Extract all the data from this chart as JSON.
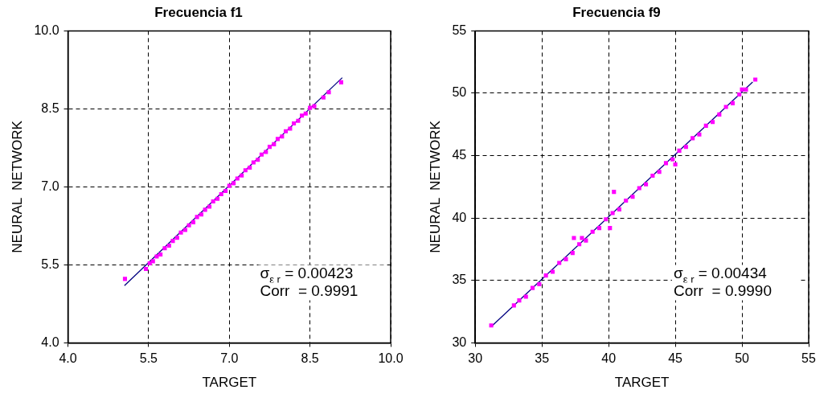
{
  "chart_data": [
    {
      "type": "scatter",
      "title": "Frecuencia f1",
      "xlabel": "TARGET",
      "ylabel": "NEURAL  NETWORK",
      "xlim": [
        4,
        10
      ],
      "xticks": [
        {
          "value": 4,
          "label": "4.0"
        },
        5.5,
        {
          "value": 7,
          "label": "7.0"
        },
        8.5,
        {
          "value": 10,
          "label": "10.0"
        }
      ],
      "ylim": [
        4,
        10
      ],
      "yticks": [
        {
          "value": 4,
          "label": "4.0"
        },
        5.5,
        {
          "value": 7,
          "label": "7.0"
        },
        8.5,
        {
          "value": 10,
          "label": "10.0"
        }
      ],
      "grid": true,
      "marker": "square",
      "annotations": [
        "σ$_{ε r}$ = 0.00423",
        "Corr  = 0.9991"
      ],
      "series": [
        {
          "type": "scatter",
          "color": "#ff00ff",
          "x": [
            5.06,
            5.45,
            5.52,
            5.58,
            5.65,
            5.72,
            5.8,
            5.88,
            5.95,
            6.03,
            6.1,
            6.18,
            6.25,
            6.33,
            6.4,
            6.48,
            6.55,
            6.63,
            6.7,
            6.78,
            6.85,
            6.93,
            7.0,
            7.08,
            7.15,
            7.23,
            7.3,
            7.38,
            7.45,
            7.53,
            7.6,
            7.68,
            7.75,
            7.83,
            7.9,
            7.98,
            8.05,
            8.13,
            8.2,
            8.28,
            8.35,
            8.42,
            8.5,
            8.58,
            8.75,
            8.85,
            9.08
          ],
          "values": [
            5.23,
            5.42,
            5.53,
            5.57,
            5.66,
            5.7,
            5.82,
            5.87,
            5.96,
            6.02,
            6.12,
            6.17,
            6.26,
            6.32,
            6.42,
            6.47,
            6.56,
            6.62,
            6.72,
            6.77,
            6.86,
            6.92,
            7.02,
            7.07,
            7.16,
            7.22,
            7.32,
            7.37,
            7.47,
            7.52,
            7.62,
            7.67,
            7.77,
            7.82,
            7.92,
            7.97,
            8.07,
            8.12,
            8.22,
            8.27,
            8.37,
            8.41,
            8.52,
            8.55,
            8.72,
            8.82,
            9.01
          ]
        },
        {
          "type": "line",
          "color": "#000080",
          "marker": "none",
          "x": [
            5.05,
            9.1
          ],
          "values": [
            5.1,
            9.1
          ]
        }
      ]
    },
    {
      "type": "scatter",
      "title": "Frecuencia f9",
      "xlabel": "TARGET",
      "ylabel": "NEURAL  NETWORK",
      "xlim": [
        30,
        55
      ],
      "xticks": [
        30,
        35,
        40,
        45,
        50,
        55
      ],
      "ylim": [
        30,
        55
      ],
      "yticks": [
        30,
        35,
        40,
        45,
        50,
        55
      ],
      "grid": true,
      "marker": "square",
      "annotations": [
        "σ$_{ε r}$ = 0.00434",
        "Corr  = 0.9990"
      ],
      "series": [
        {
          "type": "scatter",
          "color": "#ff00ff",
          "x": [
            31.2,
            32.9,
            33.3,
            33.8,
            34.3,
            34.8,
            35.3,
            35.8,
            36.3,
            36.8,
            37.3,
            37.4,
            37.8,
            38.0,
            38.3,
            38.8,
            39.3,
            39.8,
            40.1,
            40.3,
            40.4,
            40.8,
            41.3,
            41.8,
            42.3,
            42.8,
            43.3,
            43.8,
            44.3,
            44.8,
            45.0,
            45.3,
            45.8,
            46.3,
            46.8,
            47.3,
            47.8,
            48.3,
            48.8,
            49.3,
            49.8,
            50.0,
            50.3,
            51.0
          ],
          "values": [
            31.4,
            33.0,
            33.4,
            33.7,
            34.4,
            34.7,
            35.4,
            35.7,
            36.4,
            36.7,
            37.2,
            38.4,
            37.9,
            38.4,
            38.2,
            38.9,
            39.2,
            39.9,
            39.2,
            40.4,
            42.1,
            40.7,
            41.4,
            41.7,
            42.4,
            42.7,
            43.4,
            43.7,
            44.4,
            44.7,
            44.3,
            45.4,
            45.7,
            46.4,
            46.7,
            47.4,
            47.7,
            48.3,
            48.9,
            49.2,
            49.9,
            50.3,
            50.3,
            51.1
          ]
        },
        {
          "type": "line",
          "color": "#000080",
          "marker": "none",
          "x": [
            31.2,
            50.8
          ],
          "values": [
            31.3,
            50.9
          ]
        }
      ]
    }
  ]
}
